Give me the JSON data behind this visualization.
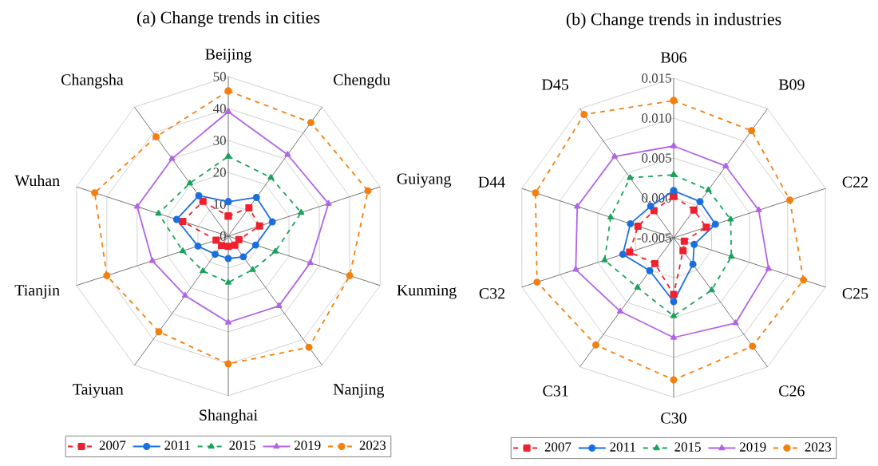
{
  "chart_data": [
    {
      "type": "radar",
      "title": "(a) Change trends in cities",
      "categories": [
        "Beijing",
        "Chengdu",
        "Guiyang",
        "Kunming",
        "Nanjing",
        "Shanghai",
        "Taiyuan",
        "Tianjin",
        "Wuhan",
        "Changsha"
      ],
      "ylim": [
        0,
        50
      ],
      "yticks": [
        0,
        10,
        20,
        30,
        40,
        50
      ],
      "grid": true,
      "legend": "bottom",
      "series": [
        {
          "name": "2007",
          "color": "#f0202e",
          "marker": "square",
          "line_style": "dashed",
          "values": [
            6.3,
            11,
            10.3,
            3.5,
            3.5,
            3.2,
            3.6,
            4,
            15,
            13.5
          ]
        },
        {
          "name": "2011",
          "color": "#1a6fe0",
          "marker": "circle",
          "line_style": "solid",
          "values": [
            10.8,
            15,
            14.5,
            9,
            8,
            7,
            7,
            10,
            17,
            15.7
          ]
        },
        {
          "name": "2015",
          "color": "#1aa35a",
          "marker": "triangle",
          "line_style": "dashed",
          "values": [
            25,
            22.7,
            24,
            15.5,
            13,
            14.5,
            13.5,
            15,
            23,
            20.5
          ]
        },
        {
          "name": "2019",
          "color": "#b264e6",
          "marker": "triangle",
          "line_style": "solid",
          "values": [
            39,
            31.6,
            33,
            27,
            27,
            27,
            23,
            25,
            30,
            30
          ]
        },
        {
          "name": "2023",
          "color": "#f57f0d",
          "marker": "circle",
          "line_style": "dashed",
          "values": [
            45.5,
            44,
            46,
            40,
            43,
            40,
            37,
            40,
            44,
            38.5
          ]
        }
      ]
    },
    {
      "type": "radar",
      "title": "(b) Change trends in industries",
      "categories": [
        "B06",
        "B09",
        "C22",
        "C25",
        "C26",
        "C30",
        "C31",
        "C32",
        "D44",
        "D45"
      ],
      "ylim": [
        -0.005,
        0.015
      ],
      "yticks": [
        {
          "value": -0.005,
          "label": "-0.005"
        },
        {
          "value": 0,
          "label": "0.000"
        },
        {
          "value": 0.005,
          "label": "0.005"
        },
        {
          "value": 0.01,
          "label": "0.010"
        },
        {
          "value": 0.015,
          "label": "0.015"
        }
      ],
      "grid": true,
      "legend": "bottom",
      "series": [
        {
          "name": "2007",
          "color": "#f0202e",
          "marker": "square",
          "line_style": "dashed",
          "values": [
            0.0002,
            -0.0007,
            -0.0007,
            -0.0036,
            -0.003,
            0.0021,
            -0.001,
            0.0008,
            -0.0003,
            -0.0008
          ]
        },
        {
          "name": "2011",
          "color": "#1a6fe0",
          "marker": "circle",
          "line_style": "solid",
          "values": [
            0.0009,
            0.0006,
            0.0005,
            -0.0023,
            -0.0009,
            0.003,
            0.0001,
            0.0017,
            0.0007,
            -0.0001
          ]
        },
        {
          "name": "2015",
          "color": "#1aa35a",
          "marker": "triangle",
          "line_style": "dashed",
          "values": [
            0.0029,
            0.0024,
            0.0025,
            0.0026,
            0.0031,
            0.0048,
            0.0027,
            0.0041,
            0.0033,
            0.0043
          ]
        },
        {
          "name": "2019",
          "color": "#b264e6",
          "marker": "triangle",
          "line_style": "solid",
          "values": [
            0.0065,
            0.0061,
            0.0062,
            0.0075,
            0.0082,
            0.0075,
            0.0064,
            0.0079,
            0.0077,
            0.0076
          ]
        },
        {
          "name": "2023",
          "color": "#f57f0d",
          "marker": "circle",
          "line_style": "dashed",
          "values": [
            0.0122,
            0.0116,
            0.0103,
            0.0121,
            0.0118,
            0.0128,
            0.0116,
            0.013,
            0.0132,
            0.0141
          ]
        }
      ]
    }
  ]
}
